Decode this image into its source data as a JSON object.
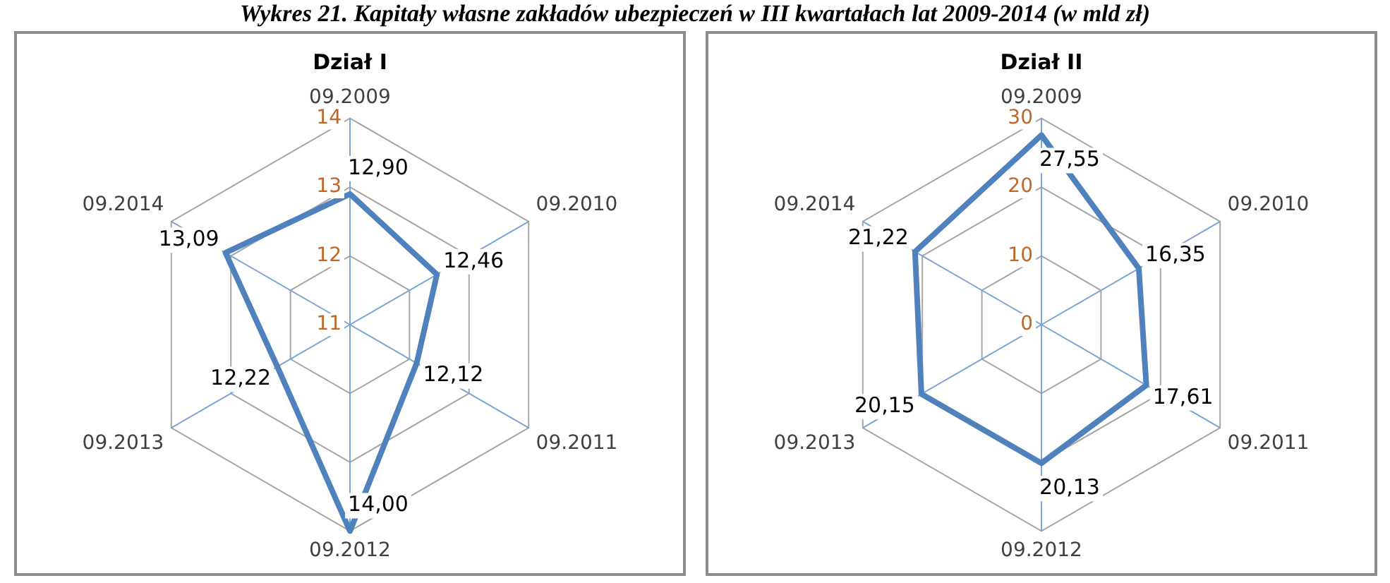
{
  "chart_data": [
    {
      "type": "other",
      "title": "Wykres 21.  Kapitały własne zakładów ubezpieczeń w III kwartałach lat 2009-2014 (w mld zł)"
    },
    {
      "type": "radar",
      "title": "Dział I",
      "categories": [
        "09.2009",
        "09.2010",
        "09.2011",
        "09.2012",
        "09.2013",
        "09.2014"
      ],
      "ylim": [
        11,
        14
      ],
      "yticks": [
        11,
        12,
        13,
        14
      ],
      "grid": true,
      "marker": "none",
      "series": [
        {
          "color": "#4f81bd",
          "values": [
            12.9,
            12.46,
            12.12,
            14.0,
            12.22,
            13.09
          ],
          "value_labels": [
            "12,90",
            "12,46",
            "12,12",
            "14,00",
            "12,22",
            "13,09"
          ]
        }
      ]
    },
    {
      "type": "radar",
      "title": "Dział II",
      "categories": [
        "09.2009",
        "09.2010",
        "09.2011",
        "09.2012",
        "09.2013",
        "09.2014"
      ],
      "ylim": [
        0,
        30
      ],
      "yticks": [
        0,
        10,
        20,
        30
      ],
      "grid": true,
      "marker": "none",
      "series": [
        {
          "color": "#4f81bd",
          "values": [
            27.55,
            16.35,
            17.61,
            20.13,
            20.15,
            21.22
          ],
          "value_labels": [
            "27,55",
            "16,35",
            "17,61",
            "20,13",
            "20,15",
            "21,22"
          ]
        }
      ]
    }
  ]
}
